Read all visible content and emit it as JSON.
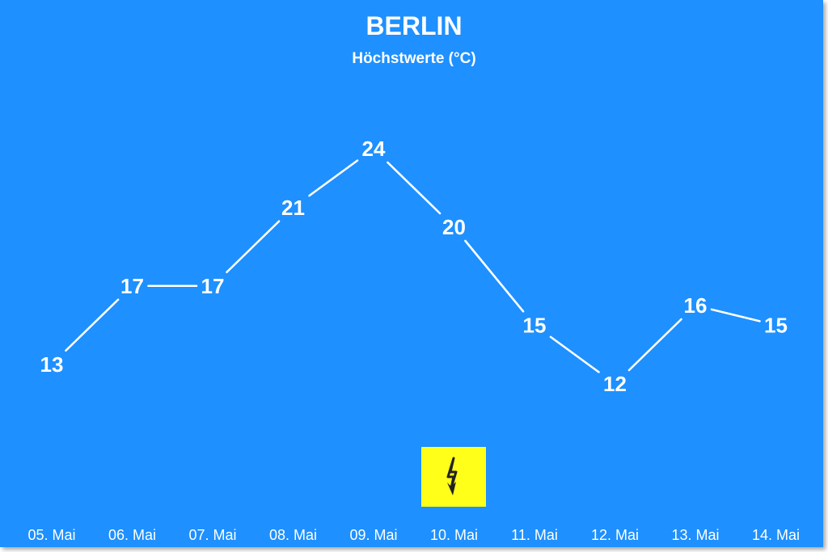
{
  "colors": {
    "background": "#1e90ff",
    "line": "#ffffff",
    "badge": "#ffff1a",
    "icon": "#222222"
  },
  "chart_data": {
    "type": "line",
    "title": "BERLIN",
    "subtitle": "Höchstwerte (°C)",
    "categories": [
      "05. Mai",
      "06. Mai",
      "07. Mai",
      "08. Mai",
      "09. Mai",
      "10. Mai",
      "11. Mai",
      "12. Mai",
      "13. Mai",
      "14. Mai"
    ],
    "series": [
      {
        "values": [
          13,
          17,
          17,
          21,
          24,
          20,
          15,
          12,
          16,
          15
        ]
      }
    ],
    "data_labels": true,
    "drop_lines": true,
    "legend": "none",
    "grid": false
  },
  "annotation": {
    "icon": "lightning-icon",
    "category": "10. Mai"
  }
}
